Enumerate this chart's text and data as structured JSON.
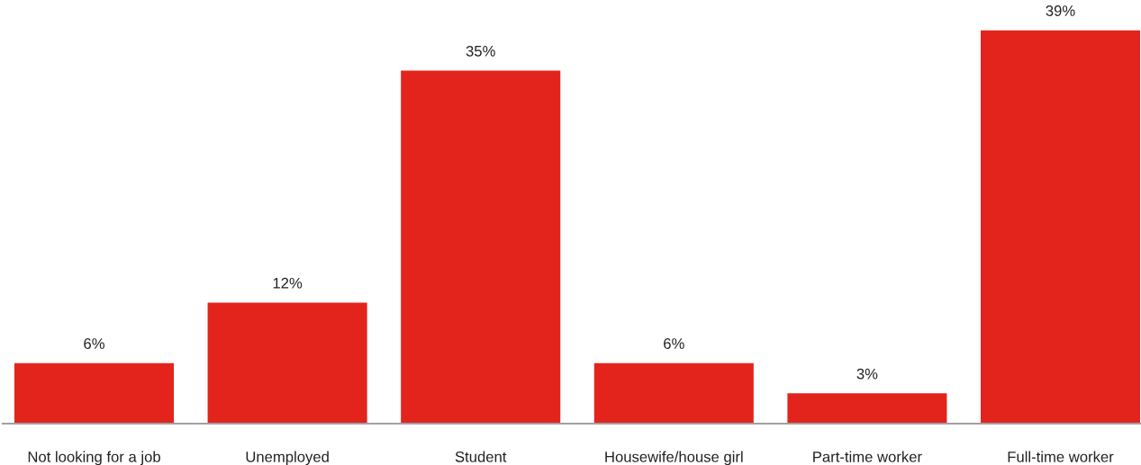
{
  "chart_data": {
    "type": "bar",
    "categories": [
      "Not looking for a job",
      "Unemployed",
      "Student",
      "Housewife/house girl",
      "Part-time worker",
      "Full-time worker"
    ],
    "values": [
      6,
      12,
      35,
      6,
      3,
      39
    ],
    "value_labels": [
      "6%",
      "12%",
      "35%",
      "6%",
      "3%",
      "39%"
    ],
    "color": "#e3241c",
    "tick_labels": "x",
    "grid": false,
    "legend": false
  }
}
